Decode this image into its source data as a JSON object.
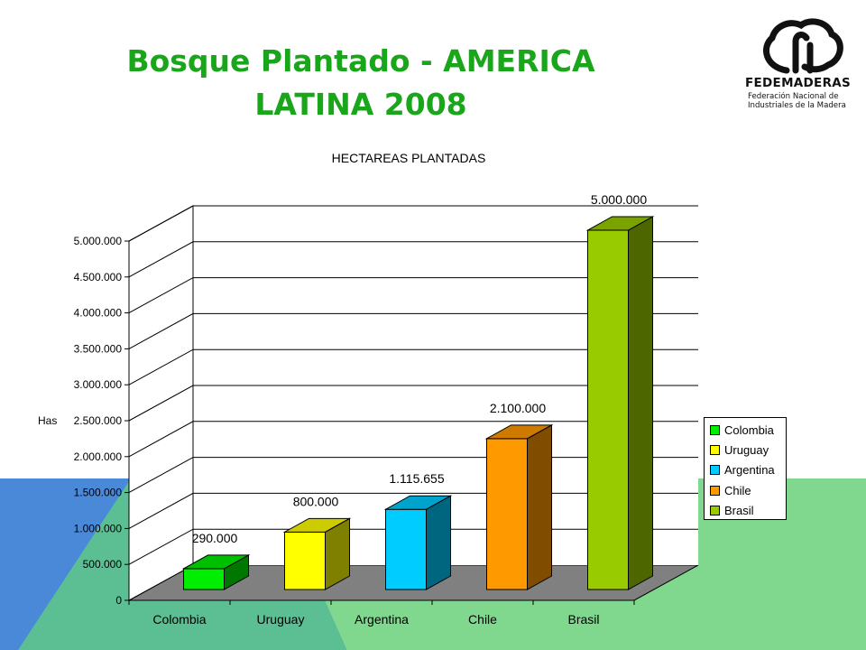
{
  "slide": {
    "title_line1": "Bosque Plantado - AMERICA",
    "title_line2": "LATINA 2008",
    "background_colors": {
      "blue": "#4a88d8",
      "teal": "#5bbf93",
      "green": "#7fd88e"
    }
  },
  "logo": {
    "name": "FEDEMADERAS",
    "subtitle_line1": "Federación Nacional de",
    "subtitle_line2": "Industriales de la Madera"
  },
  "chart_data": {
    "type": "bar",
    "title": "HECTAREAS PLANTADAS",
    "ylabel": "Has",
    "xlabel": "",
    "ylim": [
      0,
      5000000
    ],
    "y_ticks": [
      0,
      500000,
      1000000,
      1500000,
      2000000,
      2500000,
      3000000,
      3500000,
      4000000,
      4500000,
      5000000
    ],
    "y_tick_labels": [
      "0",
      "500.000",
      "1.000.000",
      "1.500.000",
      "2.000.000",
      "2.500.000",
      "3.000.000",
      "3.500.000",
      "4.000.000",
      "4.500.000",
      "5.000.000"
    ],
    "categories": [
      "Colombia",
      "Uruguay",
      "Argentina",
      "Chile",
      "Brasil"
    ],
    "values": [
      290000,
      800000,
      1115655,
      2100000,
      5000000
    ],
    "data_labels": [
      "290.000",
      "800.000",
      "1.115.655",
      "2.100.000",
      "5.000.000"
    ],
    "colors": [
      "#00ee00",
      "#ffff00",
      "#00ccff",
      "#ff9900",
      "#99cc00"
    ],
    "grid": true,
    "legend_position": "right"
  }
}
